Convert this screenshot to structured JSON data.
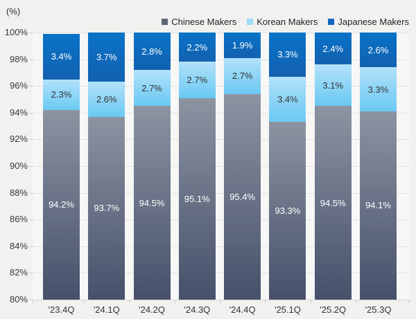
{
  "page": {
    "unit_label": "(%)"
  },
  "legend": {
    "position": "top-right",
    "items": [
      {
        "label": "Chinese Makers",
        "color": "#5c6574"
      },
      {
        "label": "Korean Makers",
        "color": "#9edcf8"
      },
      {
        "label": "Japanese Makers",
        "color": "#1267bf"
      }
    ]
  },
  "chart_data": {
    "type": "bar",
    "stacked": true,
    "title": "",
    "unit": "%",
    "categories": [
      "'23.4Q",
      "'24.1Q",
      "'24.2Q",
      "'24.3Q",
      "'24.4Q",
      "'25.1Q",
      "'25.2Q",
      "'25.3Q"
    ],
    "series": [
      {
        "name": "Chinese Makers",
        "values": [
          94.2,
          93.7,
          94.5,
          95.1,
          95.4,
          93.3,
          94.5,
          94.1
        ],
        "labels": [
          "94.2%",
          "93.7%",
          "94.5%",
          "95.1%",
          "95.4%",
          "93.3%",
          "94.5%",
          "94.1%"
        ]
      },
      {
        "name": "Korean Makers",
        "values": [
          2.3,
          2.6,
          2.7,
          2.7,
          2.7,
          3.4,
          3.1,
          3.3
        ],
        "labels": [
          "2.3%",
          "2.6%",
          "2.7%",
          "2.7%",
          "2.7%",
          "3.4%",
          "3.1%",
          "3.3%"
        ]
      },
      {
        "name": "Japanese Makers",
        "values": [
          3.4,
          3.7,
          2.8,
          2.2,
          1.9,
          3.3,
          2.4,
          2.6
        ],
        "labels": [
          "3.4%",
          "3.7%",
          "2.8%",
          "2.2%",
          "1.9%",
          "3.3%",
          "2.4%",
          "2.6%"
        ]
      }
    ],
    "ylim": [
      80,
      100
    ],
    "yticks": [
      "100%",
      "98%",
      "96%",
      "94%",
      "92%",
      "90%",
      "88%",
      "86%",
      "84%",
      "82%",
      "80%"
    ],
    "grid": true,
    "legend_position": "top-right"
  },
  "colors": {
    "page_bg": "#f1f1f0",
    "plot_bg": "#f7f7f6",
    "gridline": "#e3e3e2",
    "axis_line": "#d4d4d4",
    "tick": "#c9c9c9",
    "axis_text": "#363636",
    "chinese_top": "#8c94a2",
    "chinese_bottom": "#46506a",
    "korean_top": "#b2e1fa",
    "korean_bottom": "#6ac9f2",
    "japanese_top": "#0a73c8",
    "japanese_bottom": "#1261af",
    "label_on_dark": "#ffffff",
    "label_on_light": "#323232"
  }
}
